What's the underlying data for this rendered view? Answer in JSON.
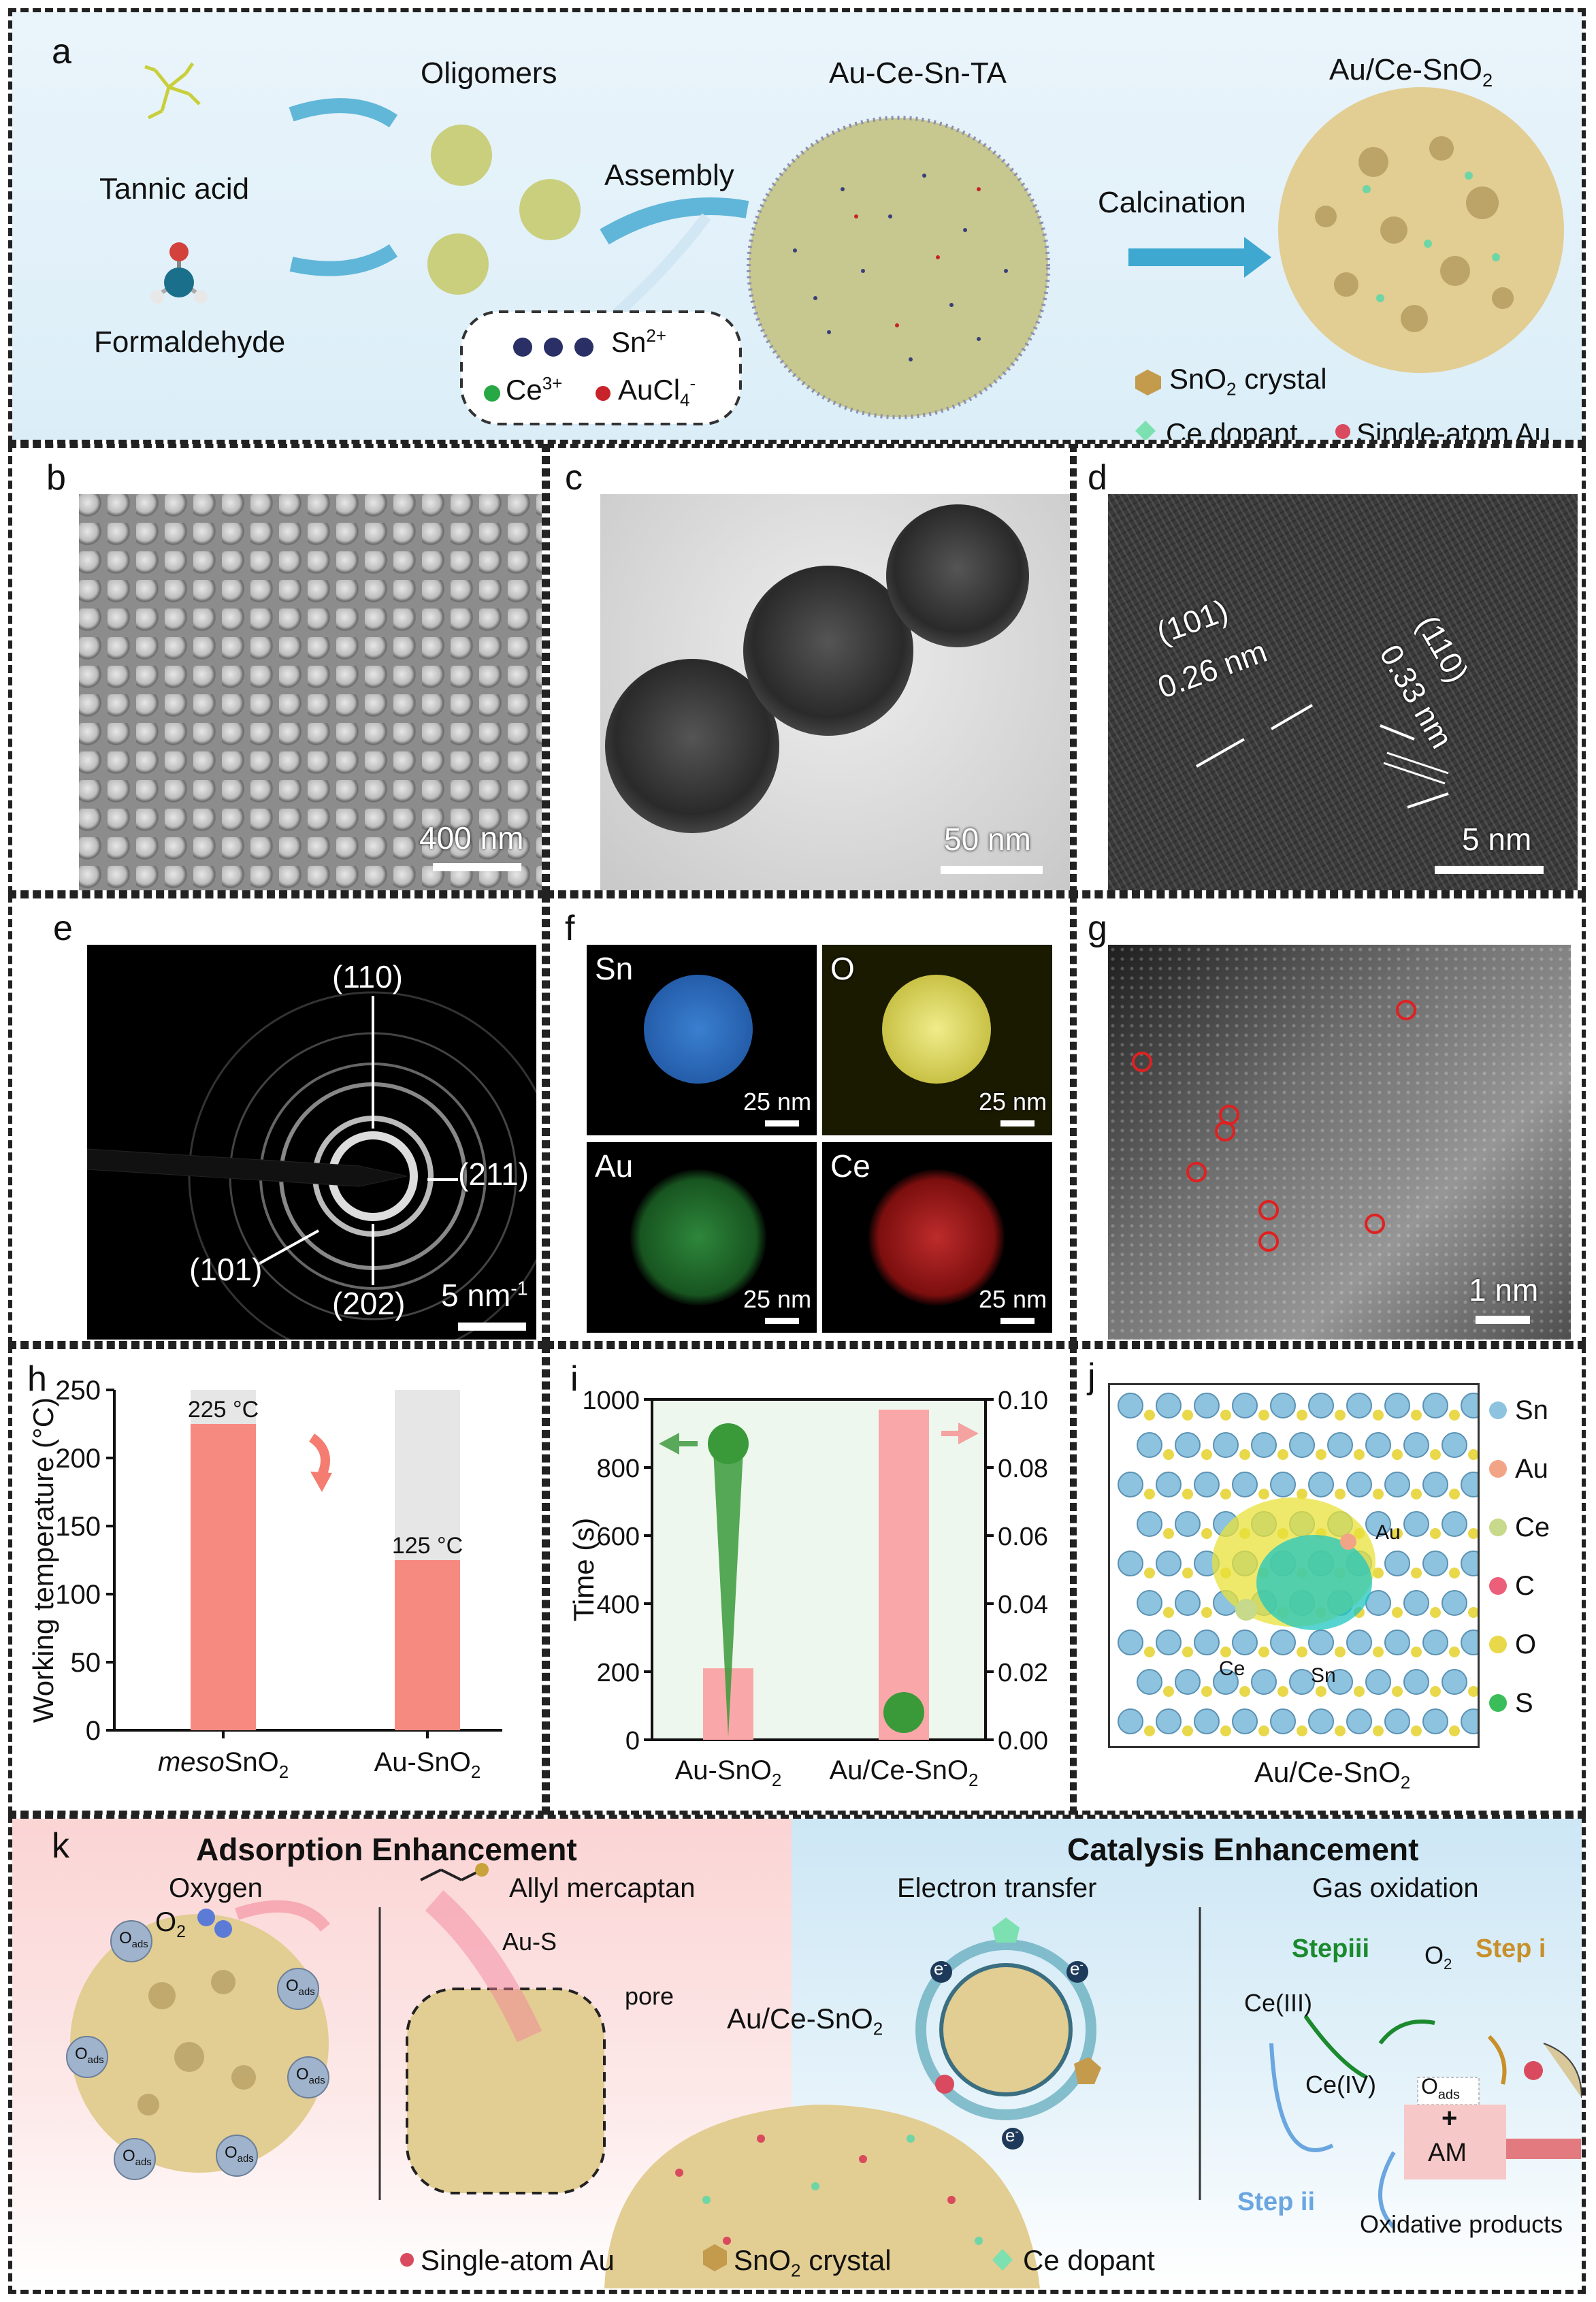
{
  "panels": {
    "a": {
      "label": "a",
      "oligomers": "Oligomers",
      "tannic_acid": "Tannic acid",
      "formaldehyde": "Formaldehyde",
      "assembly": "Assembly",
      "au_ce_sn_ta": "Au-Ce-Sn-TA",
      "calcination": "Calcination",
      "product": "Au/Ce-SnO",
      "product_sub": "2",
      "sn": "Sn",
      "sn_sup": "2+",
      "ce": "Ce",
      "ce_sup": "3+",
      "aucl": "AuCl",
      "aucl_sub": "4",
      "aucl_sup": "-",
      "legend_sno2": "SnO",
      "legend_sno2_sub": "2",
      "legend_sno2_tail": " crystal",
      "legend_ce": "Ce dopant",
      "legend_au": "Single-atom Au"
    },
    "b": {
      "label": "b",
      "scale": "400 nm"
    },
    "c": {
      "label": "c",
      "scale": "50 nm"
    },
    "d": {
      "label": "d",
      "plane1": "(101)",
      "d1": "0.26 nm",
      "plane2": "(110)",
      "d2": "0.33 nm",
      "scale": "5 nm"
    },
    "e": {
      "label": "e",
      "r110": "(110)",
      "r211": "(211)",
      "r101": "(101)",
      "r202": "(202)",
      "scale": "5 nm",
      "scale_sup": "-1"
    },
    "f": {
      "label": "f",
      "sn": "Sn",
      "o": "O",
      "au": "Au",
      "ce": "Ce",
      "scale": "25 nm"
    },
    "g": {
      "label": "g",
      "scale": "1 nm"
    },
    "h": {
      "label": "h",
      "anno1": "225 °C",
      "anno2": "125 °C"
    },
    "i": {
      "label": "i",
      "cat1": "Au-SnO",
      "cat2": "Au/Ce-SnO",
      "sub": "2"
    },
    "j": {
      "label": "j",
      "caption": "Au/Ce-SnO",
      "caption_sub": "2",
      "legend": [
        "Sn",
        "Au",
        "Ce",
        "C",
        "O",
        "S"
      ],
      "legend_colors": [
        "#8ec3e0",
        "#f2a486",
        "#c7d98a",
        "#ec5f7a",
        "#e8d84a",
        "#3bbd5a"
      ],
      "atom_au": "Au",
      "atom_ce": "Ce",
      "atom_sn": "Sn"
    },
    "k": {
      "label": "k",
      "adsorption": "Adsorption Enhancement",
      "catalysis": "Catalysis Enhancement",
      "oxygen": "Oxygen",
      "allyl": "Allyl mercaptan",
      "electron": "Electron transfer",
      "gasox": "Gas oxidation",
      "o2": "O",
      "o2_sub": "2",
      "oads": "O",
      "oads_sub": "ads",
      "aus": "Au-S",
      "pore": "pore",
      "material": "Au/Ce-SnO",
      "material_sub": "2",
      "electron_sym": "e",
      "electron_sup": "-",
      "stepiii": "Stepiii",
      "stepi": "Step i",
      "stepii": "Step ii",
      "ce3": "Ce(III)",
      "ce4": "Ce(IV)",
      "plus": "+",
      "am": "AM",
      "oxprod": "Oxidative products",
      "legend_au": "Single-atom Au",
      "legend_sno2": "SnO",
      "legend_sno2_sub": "2",
      "legend_sno2_tail": " crystal",
      "legend_ce": "Ce dopant"
    }
  },
  "chart_data": [
    {
      "type": "bar",
      "panel": "h",
      "categories": [
        "mesoSnO2",
        "Au-SnO2"
      ],
      "category_parts": [
        [
          "meso",
          "SnO",
          "2"
        ],
        [
          "",
          "Au-SnO",
          "2"
        ]
      ],
      "values": [
        225,
        125
      ],
      "background_values": [
        250,
        250
      ],
      "ylabel": "Working temperature (°C)",
      "ylim": [
        0,
        250
      ],
      "yticks": [
        0,
        50,
        100,
        150,
        200,
        250
      ],
      "colors": {
        "bar": "#f78a80",
        "background": "#e6e6e6"
      }
    },
    {
      "type": "bar",
      "panel": "i",
      "categories": [
        "Au-SnO2",
        "Au/Ce-SnO2"
      ],
      "left_axis": {
        "label": "Time (s)",
        "ylim": [
          0,
          1000
        ],
        "yticks": [
          0,
          200,
          400,
          600,
          800,
          1000
        ]
      },
      "right_axis": {
        "ylim": [
          0.0,
          0.1
        ],
        "yticks": [
          "0.00",
          "0.02",
          "0.04",
          "0.06",
          "0.08",
          "0.10"
        ]
      },
      "series": [
        {
          "axis": "left",
          "values": [
            210,
            null
          ]
        },
        {
          "axis": "right",
          "values": [
            null,
            0.097
          ]
        }
      ],
      "colors": {
        "bar": "#f9a7a8",
        "marker": "#3a9a3a"
      }
    }
  ]
}
